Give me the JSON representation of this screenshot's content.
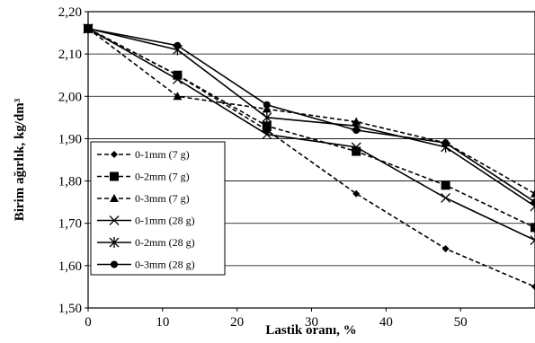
{
  "chart_data": {
    "type": "line",
    "title": "",
    "xlabel": "Lastik oranı, %",
    "ylabel": "Birim ağırlık, kg/dm³",
    "xlim": [
      0,
      60
    ],
    "ylim": [
      1.5,
      2.2
    ],
    "x_ticks": [
      0,
      10,
      20,
      30,
      40,
      50
    ],
    "x_tick_labels": [
      "0",
      "10",
      "20",
      "30",
      "40",
      "50"
    ],
    "y_ticks": [
      1.5,
      1.6,
      1.7,
      1.8,
      1.9,
      2.0,
      2.1,
      2.2
    ],
    "y_tick_labels": [
      "1,50",
      "1,60",
      "1,70",
      "1,80",
      "1,90",
      "2,00",
      "2,10",
      "2,20"
    ],
    "grid": true,
    "legend_position": "bottom-left",
    "series": [
      {
        "name": "0-1mm (7 g)",
        "marker": "diamond",
        "dashed": true,
        "x": [
          0,
          12,
          24,
          36,
          48,
          60
        ],
        "y": [
          2.16,
          2.05,
          1.92,
          1.77,
          1.64,
          1.55
        ]
      },
      {
        "name": "0-2mm (7 g)",
        "marker": "square",
        "dashed": true,
        "x": [
          0,
          12,
          24,
          36,
          48,
          60
        ],
        "y": [
          2.16,
          2.05,
          1.93,
          1.87,
          1.79,
          1.69
        ]
      },
      {
        "name": "0-3mm (7 g)",
        "marker": "triangle",
        "dashed": true,
        "x": [
          0,
          12,
          24,
          36,
          48,
          60
        ],
        "y": [
          2.16,
          2.0,
          1.97,
          1.94,
          1.89,
          1.77
        ]
      },
      {
        "name": "0-1mm (28 g)",
        "marker": "x",
        "dashed": false,
        "x": [
          0,
          12,
          24,
          36,
          48,
          60
        ],
        "y": [
          2.16,
          2.04,
          1.91,
          1.88,
          1.76,
          1.66
        ]
      },
      {
        "name": "0-2mm (28 g)",
        "marker": "asterisk",
        "dashed": false,
        "x": [
          0,
          12,
          24,
          36,
          48,
          60
        ],
        "y": [
          2.16,
          2.11,
          1.95,
          1.93,
          1.88,
          1.74
        ]
      },
      {
        "name": "0-3mm (28 g)",
        "marker": "circle",
        "dashed": false,
        "x": [
          0,
          12,
          24,
          36,
          48,
          60
        ],
        "y": [
          2.16,
          2.12,
          1.98,
          1.92,
          1.89,
          1.75
        ]
      }
    ]
  }
}
